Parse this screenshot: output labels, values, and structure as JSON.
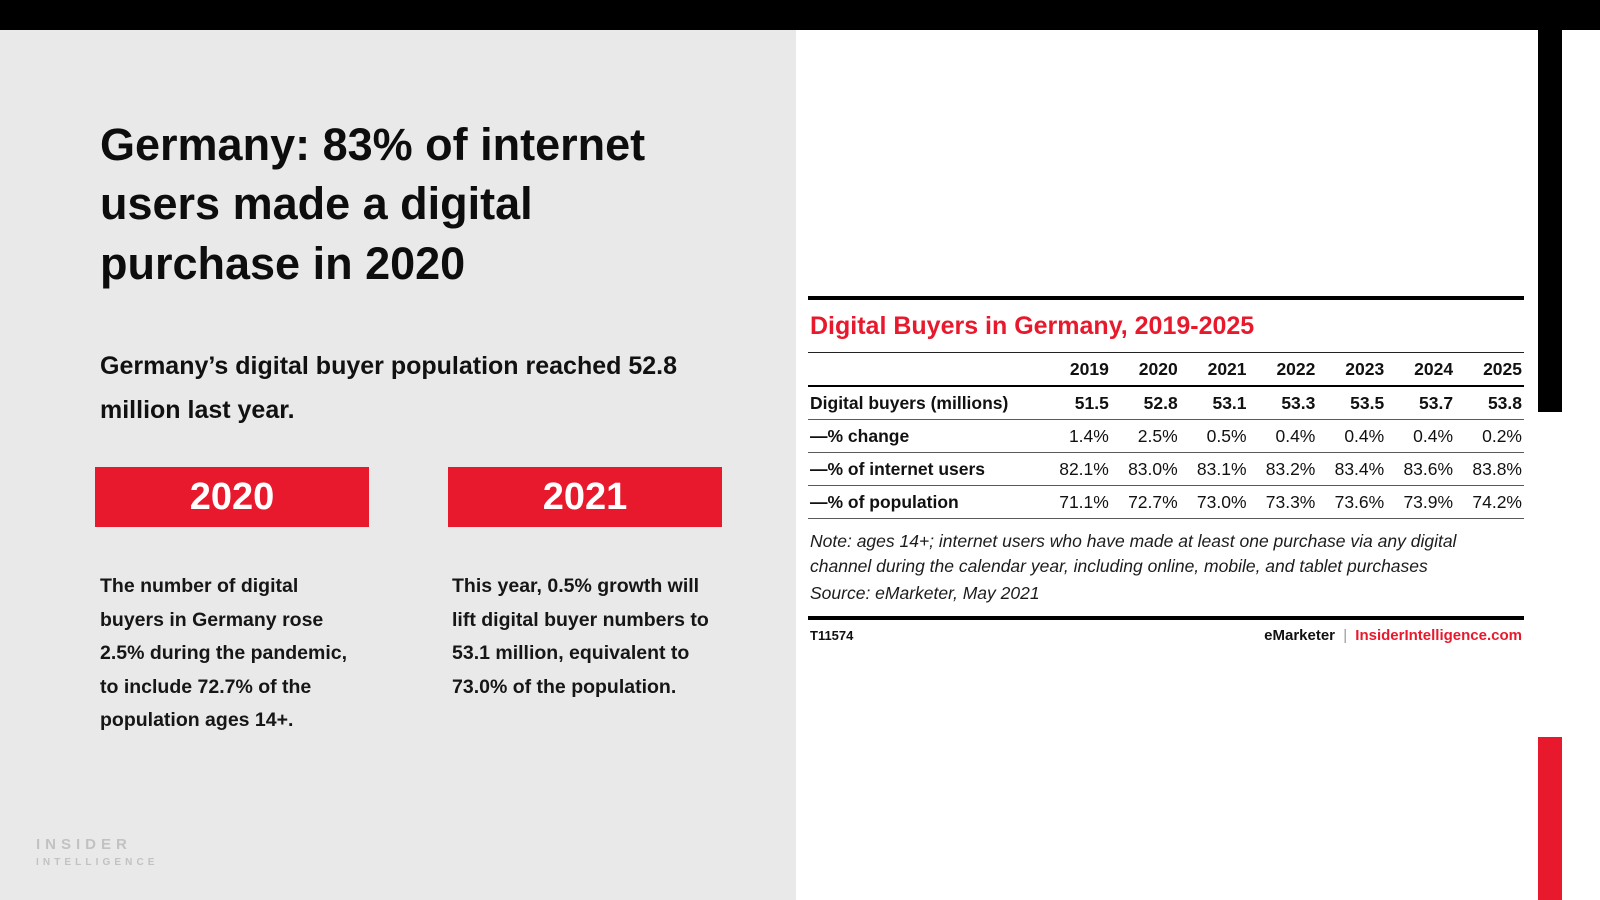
{
  "accent_red": "#e8192c",
  "left": {
    "headline": "Germany: 83% of internet users made a digital purchase in 2020",
    "subheadline": "Germany’s digital buyer population reached 52.8 million last year.",
    "badges": [
      {
        "year": "2020",
        "text": "The number of digital buyers in Germany rose 2.5% during the pandemic, to include 72.7% of the population ages 14+."
      },
      {
        "year": "2021",
        "text": "This year, 0.5% growth will lift digital buyer numbers to 53.1 million, equivalent to 73.0% of the population."
      }
    ],
    "logo": {
      "line1": "INSIDER",
      "line2": "INTELLIGENCE"
    }
  },
  "chart_data": {
    "type": "table",
    "title": "Digital Buyers in Germany, 2019-2025",
    "columns": [
      "2019",
      "2020",
      "2021",
      "2022",
      "2023",
      "2024",
      "2025"
    ],
    "rows": [
      {
        "label": "Digital buyers (millions)",
        "values": [
          "51.5",
          "52.8",
          "53.1",
          "53.3",
          "53.5",
          "53.7",
          "53.8"
        ]
      },
      {
        "label": "—% change",
        "values": [
          "1.4%",
          "2.5%",
          "0.5%",
          "0.4%",
          "0.4%",
          "0.4%",
          "0.2%"
        ]
      },
      {
        "label": "—% of internet users",
        "values": [
          "82.1%",
          "83.0%",
          "83.1%",
          "83.2%",
          "83.4%",
          "83.6%",
          "83.8%"
        ]
      },
      {
        "label": "—% of population",
        "values": [
          "71.1%",
          "72.7%",
          "73.0%",
          "73.3%",
          "73.6%",
          "73.9%",
          "74.2%"
        ]
      }
    ],
    "note": "Note: ages 14+; internet users who have made at least one purchase via any digital channel during the calendar year, including online, mobile, and tablet purchases",
    "source": "Source: eMarketer, May 2021",
    "chart_id": "T11574",
    "brand": "eMarketer",
    "brand_pipe": "|",
    "brand_site": "InsiderIntelligence.com"
  }
}
